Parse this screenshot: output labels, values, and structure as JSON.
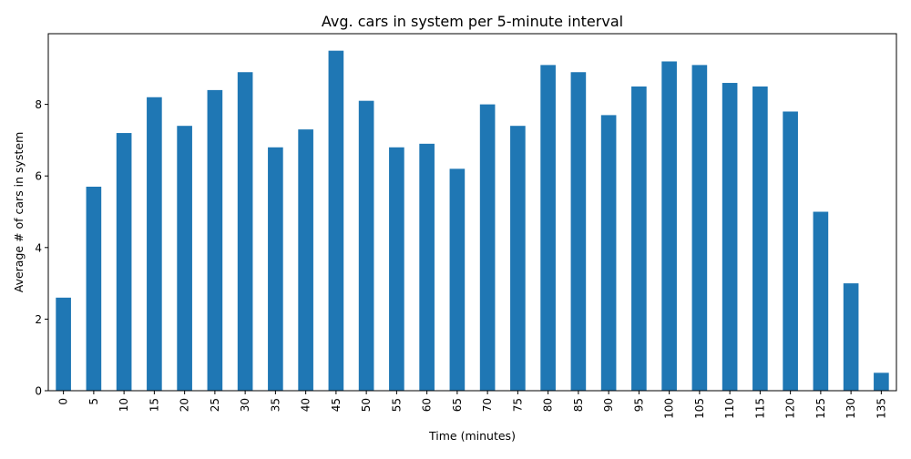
{
  "chart_data": {
    "type": "bar",
    "title": "Avg. cars in system per 5-minute interval",
    "xlabel": "Time (minutes)",
    "ylabel": "Average # of cars in system",
    "categories": [
      "0",
      "5",
      "10",
      "15",
      "20",
      "25",
      "30",
      "35",
      "40",
      "45",
      "50",
      "55",
      "60",
      "65",
      "70",
      "75",
      "80",
      "85",
      "90",
      "95",
      "100",
      "105",
      "110",
      "115",
      "120",
      "125",
      "130",
      "135"
    ],
    "values": [
      2.6,
      5.7,
      7.2,
      8.2,
      7.4,
      8.4,
      8.9,
      6.8,
      7.3,
      9.5,
      8.1,
      6.8,
      6.9,
      6.2,
      8.0,
      7.4,
      9.1,
      8.9,
      7.7,
      8.5,
      9.2,
      9.1,
      8.6,
      8.5,
      7.8,
      5.0,
      3.0,
      0.5
    ],
    "ylim": [
      0,
      9.975
    ],
    "yticks": [
      0,
      2,
      4,
      6,
      8
    ],
    "grid": false,
    "legend": "none",
    "bar_color": "#1f77b4"
  }
}
